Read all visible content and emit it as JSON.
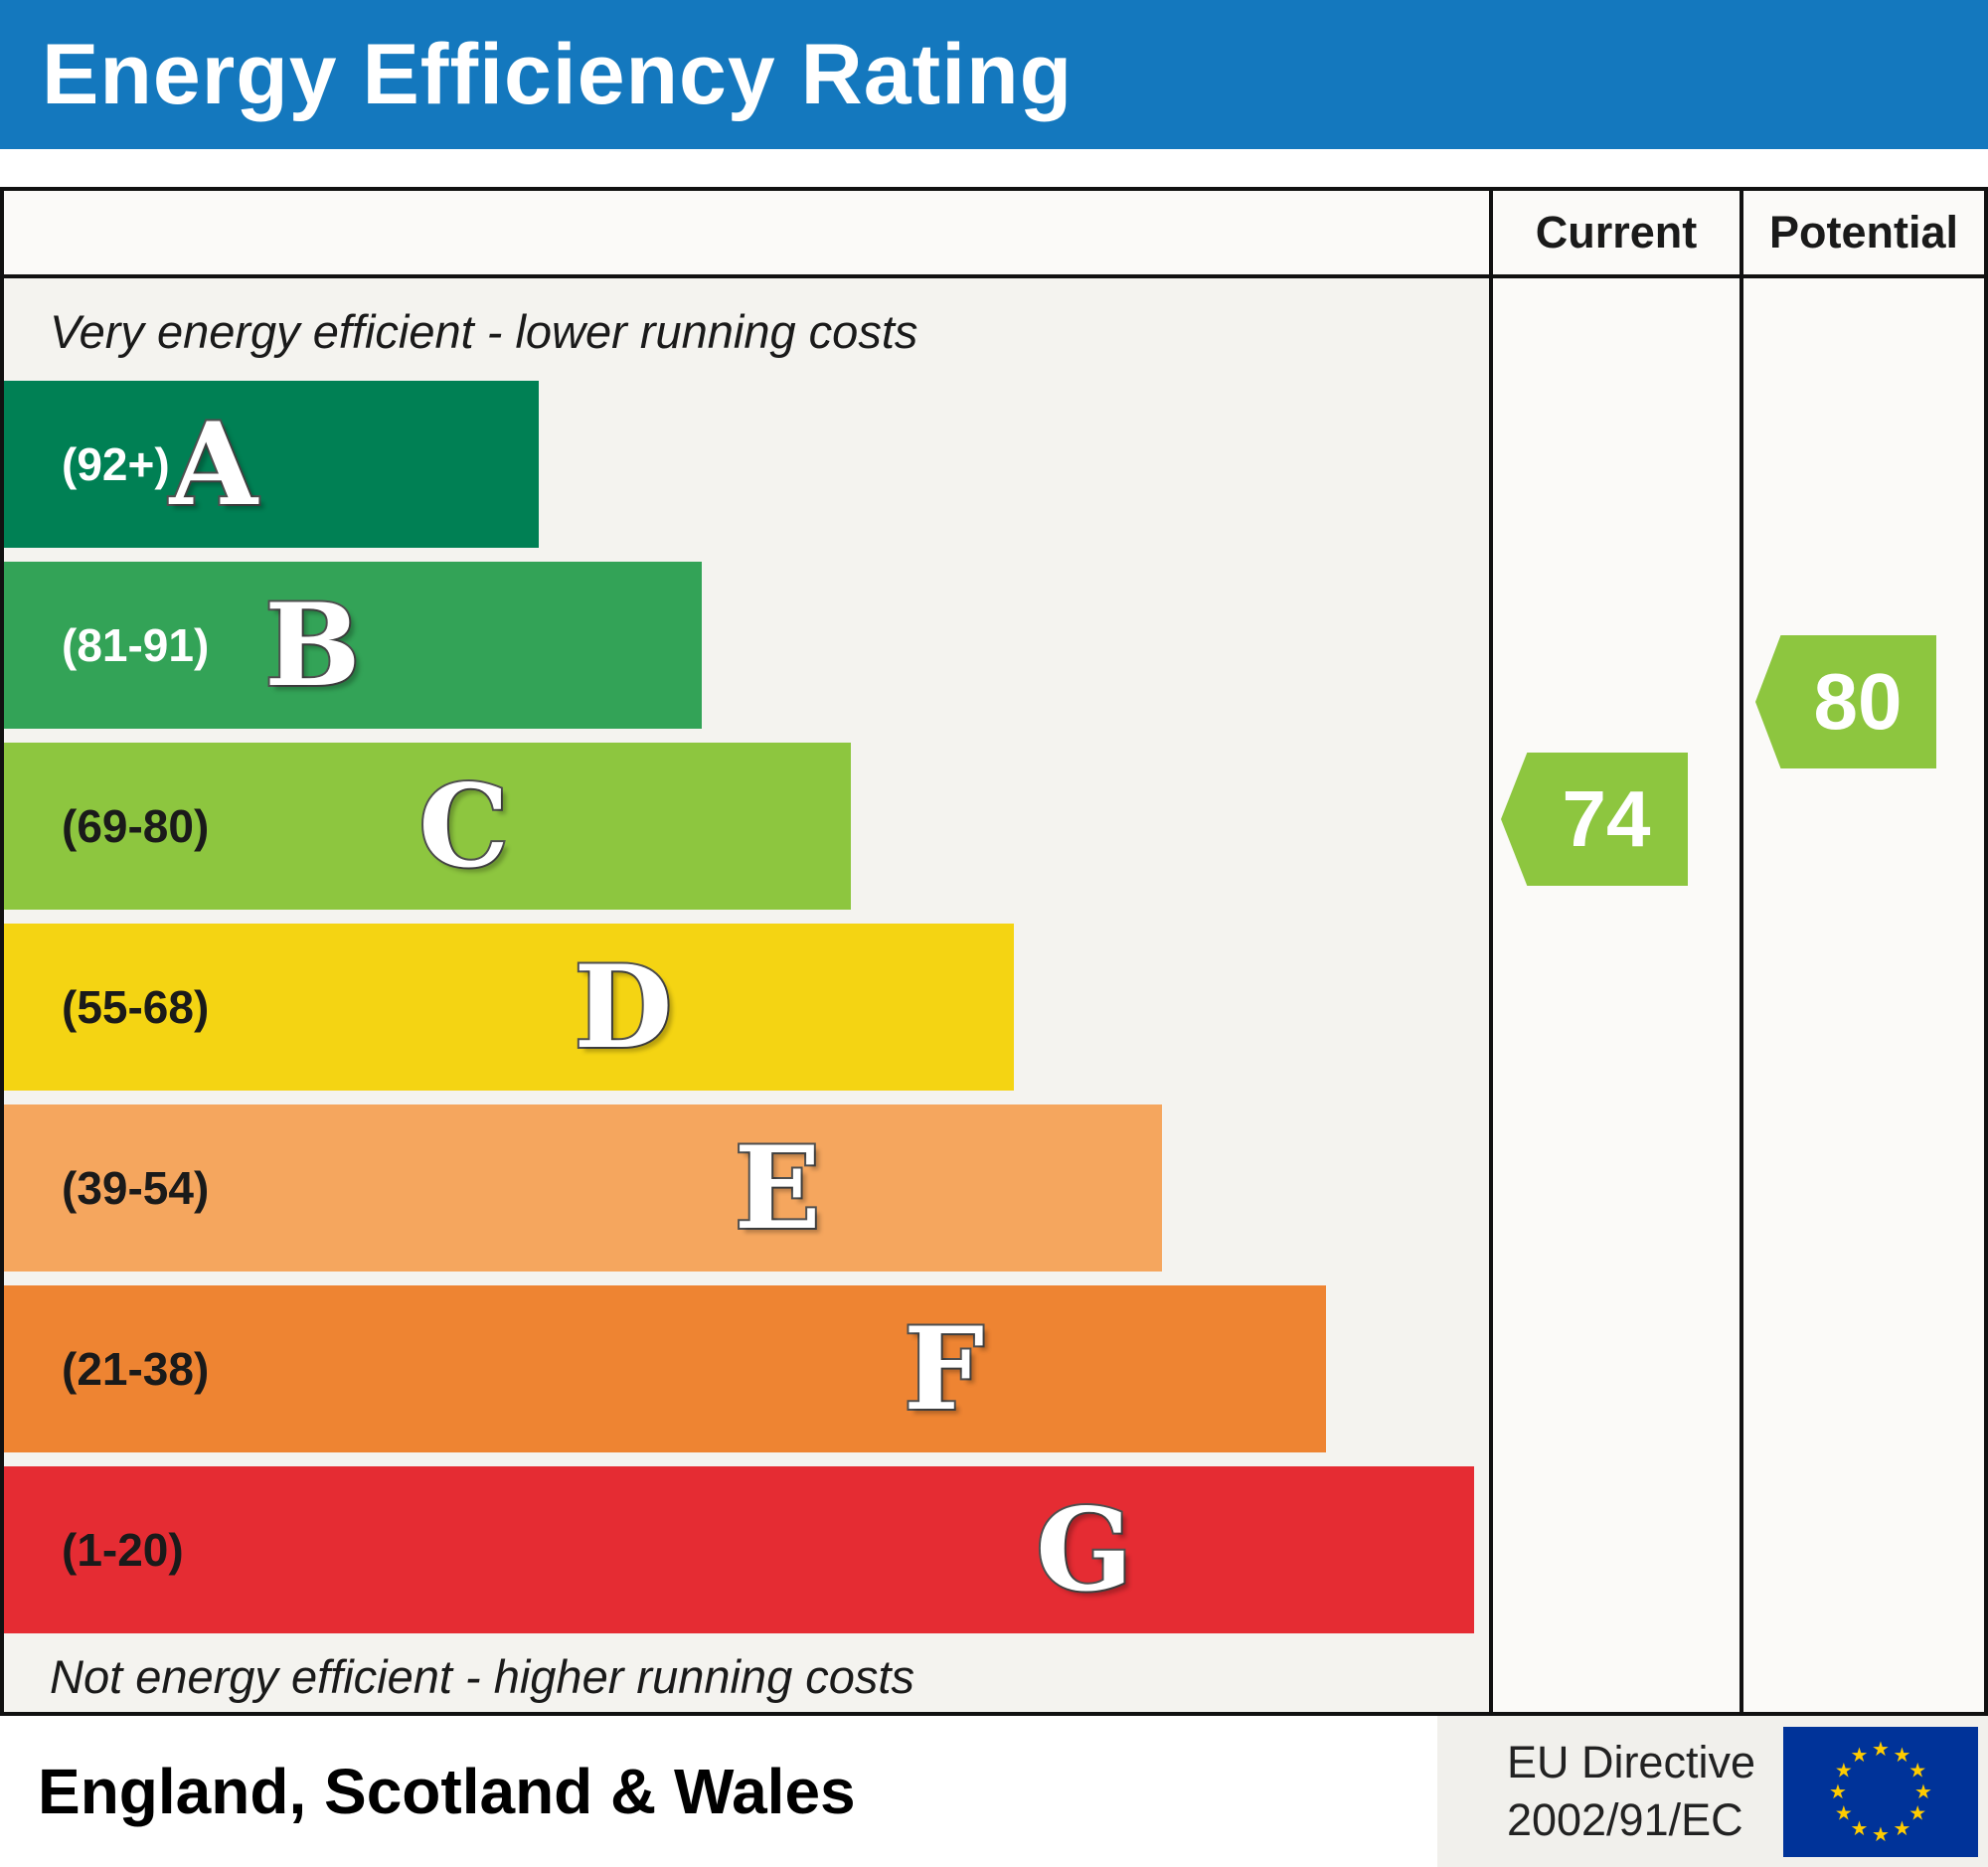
{
  "title": "Energy Efficiency Rating",
  "header": {
    "current_label": "Current",
    "potential_label": "Potential"
  },
  "captions": {
    "top": "Very energy efficient - lower running costs",
    "bottom": "Not energy efficient - higher running costs"
  },
  "bands": [
    {
      "letter": "A",
      "range_label": "(92+)",
      "color": "#008054",
      "width_pct": 36,
      "text_color": "#ffffff"
    },
    {
      "letter": "B",
      "range_label": "(81-91)",
      "color": "#33a357",
      "width_pct": 47,
      "text_color": "#ffffff"
    },
    {
      "letter": "C",
      "range_label": "(69-80)",
      "color": "#8dc63f",
      "width_pct": 57,
      "text_color": "#1a1a1a"
    },
    {
      "letter": "D",
      "range_label": "(55-68)",
      "color": "#f4d413",
      "width_pct": 68,
      "text_color": "#1a1a1a"
    },
    {
      "letter": "E",
      "range_label": "(39-54)",
      "color": "#f5a65e",
      "width_pct": 78,
      "text_color": "#1a1a1a"
    },
    {
      "letter": "F",
      "range_label": "(21-38)",
      "color": "#ee8432",
      "width_pct": 89,
      "text_color": "#1a1a1a"
    },
    {
      "letter": "G",
      "range_label": "(1-20)",
      "color": "#e52c33",
      "width_pct": 99,
      "text_color": "#1a1a1a"
    }
  ],
  "ratings": {
    "current": {
      "value": "74",
      "color": "#8dc63f",
      "band": "C"
    },
    "potential": {
      "value": "80",
      "color": "#8dc63f",
      "band": "C"
    }
  },
  "footer": {
    "region": "England, Scotland & Wales",
    "directive_line1": "EU Directive",
    "directive_line2": "2002/91/EC"
  },
  "colors": {
    "banner_blue": "#1478be",
    "flag_blue": "#003399",
    "flag_star": "#ffcc00"
  },
  "chart_data": {
    "type": "bar",
    "title": "Energy Efficiency Rating",
    "categories": [
      "A (92+)",
      "B (81-91)",
      "C (69-80)",
      "D (55-68)",
      "E (39-54)",
      "F (21-38)",
      "G (1-20)"
    ],
    "values": [
      36,
      47,
      57,
      68,
      78,
      89,
      99
    ],
    "band_ranges": [
      [
        92,
        100
      ],
      [
        81,
        91
      ],
      [
        69,
        80
      ],
      [
        55,
        68
      ],
      [
        39,
        54
      ],
      [
        21,
        38
      ],
      [
        1,
        20
      ]
    ],
    "current_rating": 74,
    "potential_rating": 80,
    "xlabel": "",
    "ylabel": "",
    "legend": [
      "Current",
      "Potential"
    ],
    "region": "England, Scotland & Wales"
  }
}
